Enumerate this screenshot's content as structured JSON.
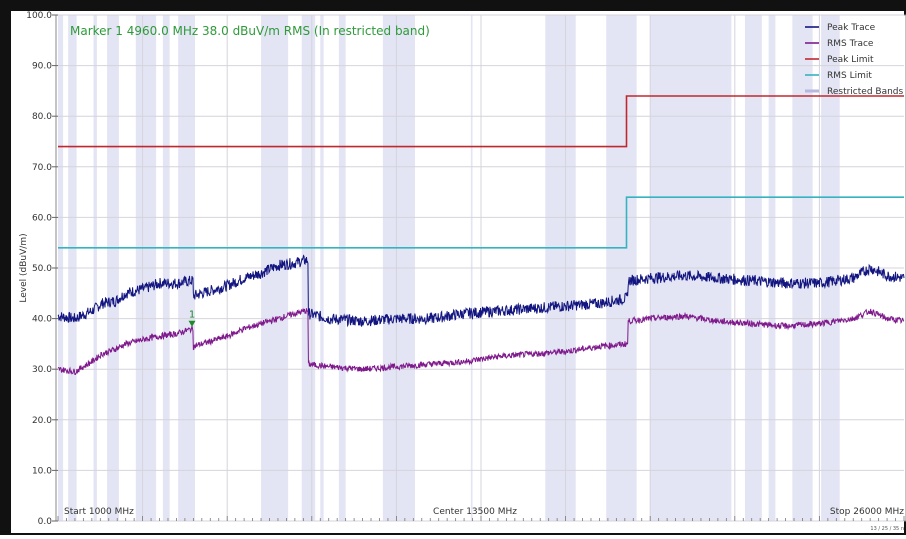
{
  "marker": {
    "text": "Marker 1 4960.0 MHz 38.0 dBuV/m RMS (In restricted band)",
    "label": "1",
    "freq_mhz": 4960,
    "level_dbuv": 38.0
  },
  "axis_notes": {
    "start": "Start 1000 MHz",
    "center": "Center 13500 MHz",
    "stop": "Stop 26000 MHz",
    "corner_stamp": "13 / 25 / 35 n"
  },
  "chart_data": {
    "type": "line",
    "ylabel": "Level (dBuV/m)",
    "ylim": [
      0,
      100
    ],
    "y_ticks": [
      "0.0",
      "10.0",
      "20.0",
      "30.0",
      "40.0",
      "50.0",
      "60.0",
      "70.0",
      "80.0",
      "90.0",
      "100.0"
    ],
    "xlim_mhz": [
      1000,
      26000
    ],
    "grid": true,
    "legend_position": "top-right",
    "colors": {
      "peak_trace": "#131680",
      "rms_trace": "#7f1a8c",
      "peak_limit": "#c0282e",
      "rms_limit": "#35b3c0",
      "restricted": "#e4e5f4",
      "marker": "#1e8a2a"
    },
    "legend": [
      {
        "key": "peak_trace",
        "label": "Peak Trace"
      },
      {
        "key": "rms_trace",
        "label": "RMS Trace"
      },
      {
        "key": "peak_limit",
        "label": "Peak Limit"
      },
      {
        "key": "rms_limit",
        "label": "RMS Limit"
      },
      {
        "key": "restricted",
        "label": "Restricted Bands"
      }
    ],
    "restricted_bands_mhz": [
      [
        1000,
        1150
      ],
      [
        1300,
        1550
      ],
      [
        2050,
        2150
      ],
      [
        2450,
        2800
      ],
      [
        3300,
        3900
      ],
      [
        4100,
        4300
      ],
      [
        4550,
        5050
      ],
      [
        7000,
        7800
      ],
      [
        8200,
        8600
      ],
      [
        8750,
        8850
      ],
      [
        9300,
        9500
      ],
      [
        10600,
        11550
      ],
      [
        13200,
        13250
      ],
      [
        15400,
        16300
      ],
      [
        17200,
        18100
      ],
      [
        18500,
        20900
      ],
      [
        21300,
        21800
      ],
      [
        22000,
        22200
      ],
      [
        22700,
        23300
      ],
      [
        23550,
        24100
      ]
    ],
    "peak_limit": [
      {
        "x": 1000,
        "y": 74
      },
      {
        "x": 17800,
        "y": 74
      },
      {
        "x": 17800,
        "y": 84
      },
      {
        "x": 26000,
        "y": 84
      }
    ],
    "rms_limit": [
      {
        "x": 1000,
        "y": 54
      },
      {
        "x": 17800,
        "y": 54
      },
      {
        "x": 17800,
        "y": 64
      },
      {
        "x": 26000,
        "y": 64
      }
    ],
    "peak_trace": [
      {
        "x": 1000,
        "y": 40.5
      },
      {
        "x": 1500,
        "y": 40.0
      },
      {
        "x": 2000,
        "y": 41.5
      },
      {
        "x": 2300,
        "y": 43.0
      },
      {
        "x": 2700,
        "y": 43.5
      },
      {
        "x": 3000,
        "y": 45.0
      },
      {
        "x": 3600,
        "y": 46.0
      },
      {
        "x": 4000,
        "y": 47.0
      },
      {
        "x": 4500,
        "y": 47.0
      },
      {
        "x": 4960,
        "y": 47.5
      },
      {
        "x": 5000,
        "y": 44.5
      },
      {
        "x": 5500,
        "y": 45.5
      },
      {
        "x": 6000,
        "y": 46.5
      },
      {
        "x": 6500,
        "y": 48.0
      },
      {
        "x": 7000,
        "y": 49.0
      },
      {
        "x": 7500,
        "y": 50.5
      },
      {
        "x": 8000,
        "y": 51.0
      },
      {
        "x": 8300,
        "y": 51.5
      },
      {
        "x": 8400,
        "y": 41.0
      },
      {
        "x": 9000,
        "y": 40.0
      },
      {
        "x": 10000,
        "y": 39.5
      },
      {
        "x": 11000,
        "y": 40.0
      },
      {
        "x": 12000,
        "y": 40.0
      },
      {
        "x": 13000,
        "y": 41.0
      },
      {
        "x": 14000,
        "y": 41.5
      },
      {
        "x": 15000,
        "y": 42.0
      },
      {
        "x": 16000,
        "y": 42.5
      },
      {
        "x": 17000,
        "y": 43.0
      },
      {
        "x": 17800,
        "y": 44.0
      },
      {
        "x": 17850,
        "y": 47.5
      },
      {
        "x": 18500,
        "y": 48.0
      },
      {
        "x": 19500,
        "y": 48.5
      },
      {
        "x": 20500,
        "y": 48.0
      },
      {
        "x": 21500,
        "y": 47.5
      },
      {
        "x": 22500,
        "y": 47.0
      },
      {
        "x": 23500,
        "y": 47.0
      },
      {
        "x": 24500,
        "y": 48.0
      },
      {
        "x": 25000,
        "y": 50.0
      },
      {
        "x": 25500,
        "y": 48.5
      },
      {
        "x": 26000,
        "y": 48.0
      }
    ],
    "rms_trace": [
      {
        "x": 1000,
        "y": 30.0
      },
      {
        "x": 1500,
        "y": 29.5
      },
      {
        "x": 2000,
        "y": 31.5
      },
      {
        "x": 2300,
        "y": 33.0
      },
      {
        "x": 2700,
        "y": 34.0
      },
      {
        "x": 3000,
        "y": 35.0
      },
      {
        "x": 3600,
        "y": 36.0
      },
      {
        "x": 4000,
        "y": 36.5
      },
      {
        "x": 4500,
        "y": 37.0
      },
      {
        "x": 4960,
        "y": 38.0
      },
      {
        "x": 5000,
        "y": 34.5
      },
      {
        "x": 5500,
        "y": 35.5
      },
      {
        "x": 6000,
        "y": 36.5
      },
      {
        "x": 6500,
        "y": 38.0
      },
      {
        "x": 7000,
        "y": 39.0
      },
      {
        "x": 7500,
        "y": 40.0
      },
      {
        "x": 8000,
        "y": 41.0
      },
      {
        "x": 8300,
        "y": 41.5
      },
      {
        "x": 8400,
        "y": 31.0
      },
      {
        "x": 9000,
        "y": 30.5
      },
      {
        "x": 10000,
        "y": 30.0
      },
      {
        "x": 11000,
        "y": 30.5
      },
      {
        "x": 12000,
        "y": 31.0
      },
      {
        "x": 13000,
        "y": 31.5
      },
      {
        "x": 14000,
        "y": 32.5
      },
      {
        "x": 15000,
        "y": 33.0
      },
      {
        "x": 16000,
        "y": 33.5
      },
      {
        "x": 17000,
        "y": 34.5
      },
      {
        "x": 17800,
        "y": 35.0
      },
      {
        "x": 17850,
        "y": 39.5
      },
      {
        "x": 18500,
        "y": 40.0
      },
      {
        "x": 19500,
        "y": 40.5
      },
      {
        "x": 20500,
        "y": 39.5
      },
      {
        "x": 21500,
        "y": 39.0
      },
      {
        "x": 22500,
        "y": 38.5
      },
      {
        "x": 23500,
        "y": 39.0
      },
      {
        "x": 24500,
        "y": 40.0
      },
      {
        "x": 25000,
        "y": 41.5
      },
      {
        "x": 25500,
        "y": 40.0
      },
      {
        "x": 26000,
        "y": 39.5
      }
    ]
  }
}
